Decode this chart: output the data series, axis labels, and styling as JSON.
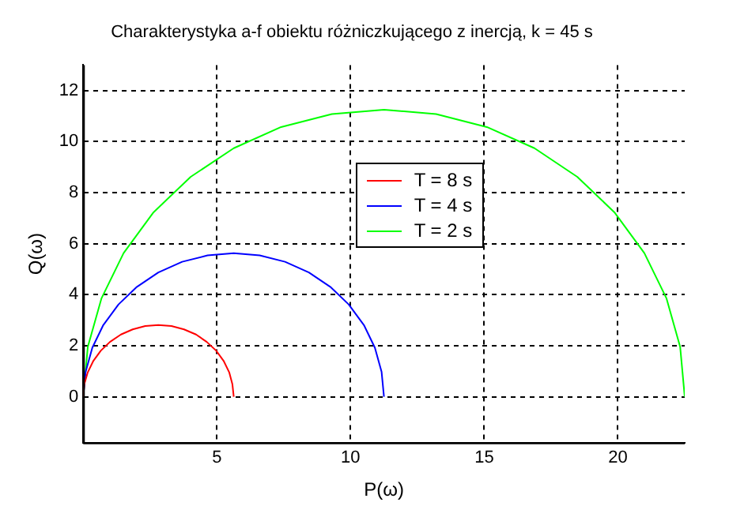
{
  "chart_data": {
    "type": "line",
    "title": "Charakterystyka a-f obiektu różniczkującego z inercją, k = 45 s",
    "xlabel": "P(ω)",
    "ylabel": "Q(ω)",
    "xlim": [
      0,
      22.5
    ],
    "ylim": [
      -1.8,
      13
    ],
    "xticks": [
      5,
      10,
      15,
      20
    ],
    "yticks": [
      0,
      2,
      4,
      6,
      8,
      10,
      12
    ],
    "grid": true,
    "legend": "top",
    "marker": "none",
    "line_style": "solid",
    "series": [
      {
        "name": "T = 8 s",
        "color": "#ff0000",
        "x": [
          0,
          0.04,
          0.17,
          0.38,
          0.66,
          1.0,
          1.41,
          1.85,
          2.32,
          2.81,
          3.3,
          3.77,
          4.22,
          4.62,
          4.97,
          5.25,
          5.46,
          5.58,
          5.63
        ],
        "values": [
          0,
          0.49,
          0.96,
          1.41,
          1.81,
          2.15,
          2.44,
          2.64,
          2.77,
          2.81,
          2.77,
          2.64,
          2.44,
          2.15,
          1.81,
          1.41,
          0.96,
          0.49,
          0
        ]
      },
      {
        "name": "T = 4 s",
        "color": "#0000ff",
        "x": [
          0,
          0.09,
          0.34,
          0.75,
          1.32,
          2.01,
          2.81,
          3.7,
          4.65,
          5.63,
          6.6,
          7.55,
          8.44,
          9.24,
          9.93,
          10.5,
          10.91,
          11.16,
          11.25
        ],
        "values": [
          0,
          0.98,
          1.92,
          2.81,
          3.62,
          4.31,
          4.87,
          5.29,
          5.54,
          5.63,
          5.54,
          5.29,
          4.87,
          4.31,
          3.62,
          2.81,
          1.92,
          0.98,
          0
        ]
      },
      {
        "name": "T = 2 s",
        "color": "#00ff00",
        "x": [
          0,
          0.17,
          0.68,
          1.51,
          2.63,
          4.02,
          5.63,
          7.4,
          9.3,
          11.25,
          13.2,
          15.1,
          16.88,
          18.48,
          19.87,
          20.99,
          21.82,
          22.33,
          22.5
        ],
        "values": [
          0,
          1.95,
          3.85,
          5.63,
          7.23,
          8.62,
          9.74,
          10.57,
          11.08,
          11.25,
          11.08,
          10.57,
          9.74,
          8.62,
          7.23,
          5.63,
          3.85,
          1.95,
          0
        ]
      }
    ]
  }
}
